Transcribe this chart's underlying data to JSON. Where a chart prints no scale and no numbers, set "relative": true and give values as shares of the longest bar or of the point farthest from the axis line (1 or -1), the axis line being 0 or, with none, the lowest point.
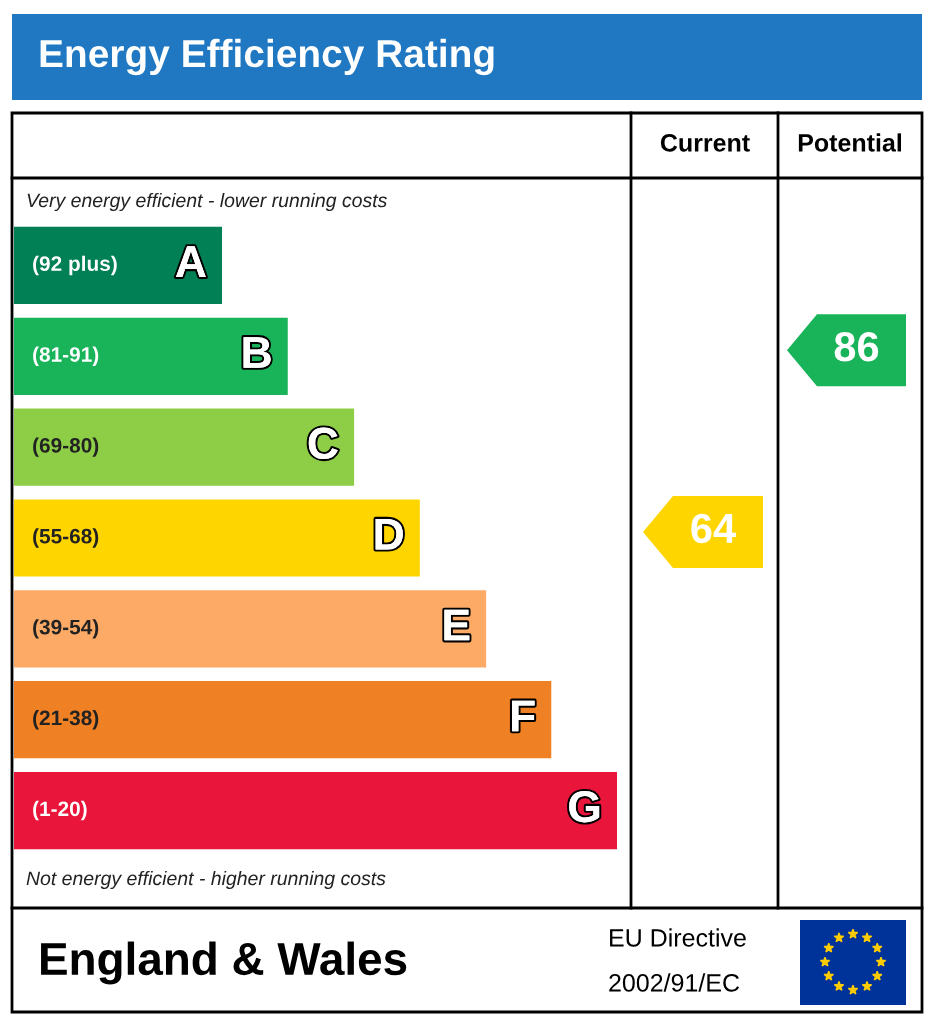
{
  "chart_data": {
    "type": "bar",
    "orientation": "horizontal",
    "relative": true,
    "title": "Energy Efficiency Rating",
    "categories": [
      "A",
      "B",
      "C",
      "D",
      "E",
      "F",
      "G"
    ],
    "values": [
      0.345,
      0.454,
      0.564,
      0.673,
      0.783,
      0.891,
      1
    ],
    "colors": [
      "#008054",
      "#19b459",
      "#8dce46",
      "#ffd500",
      "#fcaa65",
      "#ef8023",
      "#e9153b"
    ],
    "annotations": [
      "(92 plus)",
      "(81-91)",
      "(69-80)",
      "(55-68)",
      "(39-54)",
      "(21-38)",
      "(1-20)",
      "Current",
      "Potential",
      "64",
      "86",
      "Very energy efficient - lower running costs",
      "Not energy efficient - higher running costs",
      "England & Wales",
      "EU Directive",
      "2002/91/EC"
    ]
  }
}
